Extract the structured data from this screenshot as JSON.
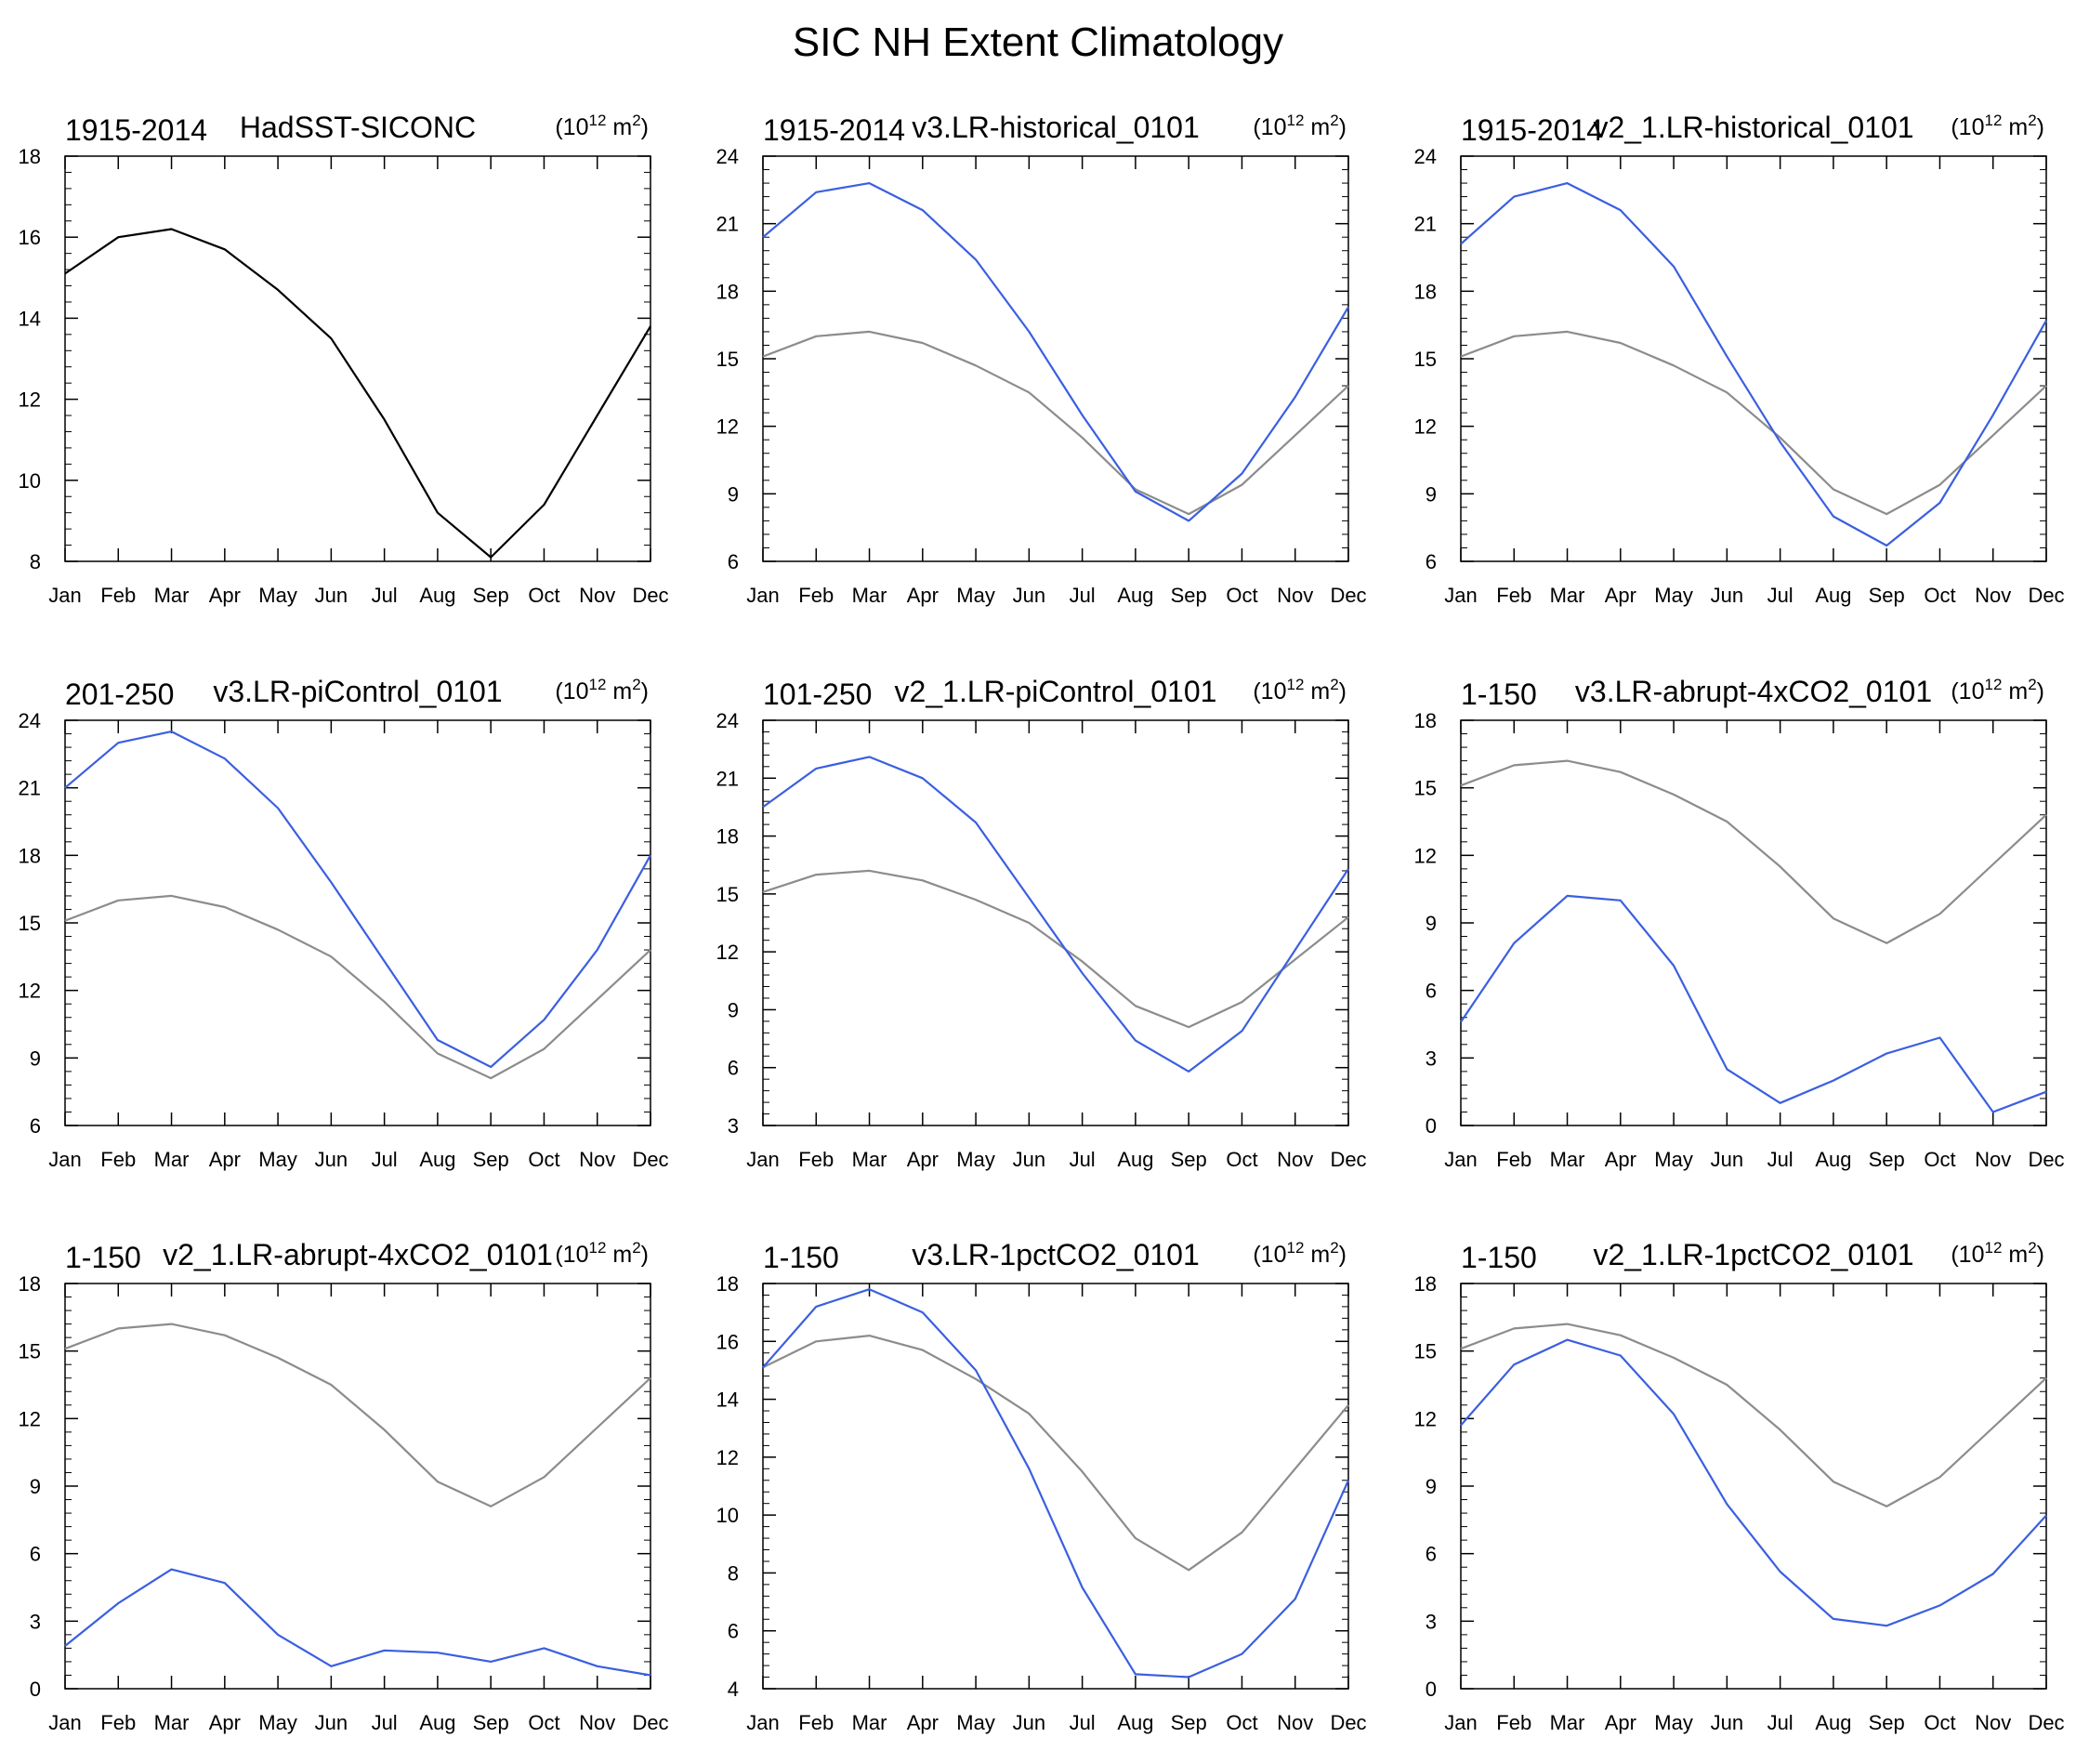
{
  "figure_title": "SIC NH Extent Climatology",
  "units": {
    "base": "(10",
    "exp": "12",
    "mid": " m",
    "exp2": "2",
    "close": ")"
  },
  "colors": {
    "obs": "#000000",
    "ref": "#8c8c8c",
    "model": "#3a5fe0"
  },
  "months": [
    "Jan",
    "Feb",
    "Mar",
    "Apr",
    "May",
    "Jun",
    "Jul",
    "Aug",
    "Sep",
    "Oct",
    "Nov",
    "Dec"
  ],
  "chart_data": [
    {
      "type": "line",
      "period": "1915-2014",
      "title": "HadSST-SICONC",
      "ylim": [
        8,
        18
      ],
      "yticks": [
        8,
        10,
        12,
        14,
        16,
        18
      ],
      "series": [
        {
          "name": "HadSST-SICONC",
          "role": "obs",
          "values": [
            15.1,
            16.0,
            16.2,
            15.7,
            14.7,
            13.5,
            11.5,
            9.2,
            8.1,
            9.4,
            11.6,
            13.8
          ]
        }
      ]
    },
    {
      "type": "line",
      "period": "1915-2014",
      "title": "v3.LR-historical_0101",
      "ylim": [
        6,
        24
      ],
      "yticks": [
        6,
        9,
        12,
        15,
        18,
        21,
        24
      ],
      "series": [
        {
          "name": "HadSST-SICONC",
          "role": "ref",
          "values": [
            15.1,
            16.0,
            16.2,
            15.7,
            14.7,
            13.5,
            11.5,
            9.2,
            8.1,
            9.4,
            11.6,
            13.8
          ]
        },
        {
          "name": "v3.LR-historical_0101",
          "role": "model",
          "values": [
            20.4,
            22.4,
            22.8,
            21.6,
            19.4,
            16.2,
            12.5,
            9.1,
            7.8,
            9.9,
            13.3,
            17.3
          ]
        }
      ]
    },
    {
      "type": "line",
      "period": "1915-2014",
      "title": "v2_1.LR-historical_0101",
      "ylim": [
        6,
        24
      ],
      "yticks": [
        6,
        9,
        12,
        15,
        18,
        21,
        24
      ],
      "series": [
        {
          "name": "HadSST-SICONC",
          "role": "ref",
          "values": [
            15.1,
            16.0,
            16.2,
            15.7,
            14.7,
            13.5,
            11.5,
            9.2,
            8.1,
            9.4,
            11.6,
            13.8
          ]
        },
        {
          "name": "v2_1.LR-historical_0101",
          "role": "model",
          "values": [
            20.1,
            22.2,
            22.8,
            21.6,
            19.1,
            15.1,
            11.3,
            8.0,
            6.7,
            8.6,
            12.5,
            16.7
          ]
        }
      ]
    },
    {
      "type": "line",
      "period": "201-250",
      "title": "v3.LR-piControl_0101",
      "ylim": [
        6,
        24
      ],
      "yticks": [
        6,
        9,
        12,
        15,
        18,
        21,
        24
      ],
      "series": [
        {
          "name": "HadSST-SICONC",
          "role": "ref",
          "values": [
            15.1,
            16.0,
            16.2,
            15.7,
            14.7,
            13.5,
            11.5,
            9.2,
            8.1,
            9.4,
            11.6,
            13.8
          ]
        },
        {
          "name": "v3.LR-piControl_0101",
          "role": "model",
          "values": [
            21.0,
            23.0,
            23.5,
            22.3,
            20.1,
            16.8,
            13.3,
            9.8,
            8.6,
            10.7,
            13.8,
            18.0
          ]
        }
      ]
    },
    {
      "type": "line",
      "period": "101-250",
      "title": "v2_1.LR-piControl_0101",
      "ylim": [
        3,
        24
      ],
      "yticks": [
        3,
        6,
        9,
        12,
        15,
        18,
        21,
        24
      ],
      "series": [
        {
          "name": "HadSST-SICONC",
          "role": "ref",
          "values": [
            15.1,
            16.0,
            16.2,
            15.7,
            14.7,
            13.5,
            11.5,
            9.2,
            8.1,
            9.4,
            11.6,
            13.8
          ]
        },
        {
          "name": "v2_1.LR-piControl_0101",
          "role": "model",
          "values": [
            19.5,
            21.5,
            22.1,
            21.0,
            18.7,
            14.8,
            10.9,
            7.4,
            5.8,
            7.9,
            12.1,
            16.3
          ]
        }
      ]
    },
    {
      "type": "line",
      "period": "1-150",
      "title": "v3.LR-abrupt-4xCO2_0101",
      "ylim": [
        0,
        18
      ],
      "yticks": [
        0,
        3,
        6,
        9,
        12,
        15,
        18
      ],
      "series": [
        {
          "name": "HadSST-SICONC",
          "role": "ref",
          "values": [
            15.1,
            16.0,
            16.2,
            15.7,
            14.7,
            13.5,
            11.5,
            9.2,
            8.1,
            9.4,
            11.6,
            13.8
          ]
        },
        {
          "name": "v3.LR-abrupt-4xCO2_0101",
          "role": "model",
          "values": [
            4.6,
            8.1,
            10.2,
            10.0,
            7.1,
            2.5,
            1.0,
            2.0,
            3.2,
            3.9,
            0.6,
            1.5
          ]
        }
      ]
    },
    {
      "type": "line",
      "period": "1-150",
      "title": "v2_1.LR-abrupt-4xCO2_0101",
      "ylim": [
        0,
        18
      ],
      "yticks": [
        0,
        3,
        6,
        9,
        12,
        15,
        18
      ],
      "series": [
        {
          "name": "HadSST-SICONC",
          "role": "ref",
          "values": [
            15.1,
            16.0,
            16.2,
            15.7,
            14.7,
            13.5,
            11.5,
            9.2,
            8.1,
            9.4,
            11.6,
            13.8
          ]
        },
        {
          "name": "v2_1.LR-abrupt-4xCO2_0101",
          "role": "model",
          "values": [
            1.9,
            3.8,
            5.3,
            4.7,
            2.4,
            1.0,
            1.7,
            1.6,
            1.2,
            1.8,
            1.0,
            0.6
          ]
        }
      ]
    },
    {
      "type": "line",
      "period": "1-150",
      "title": "v3.LR-1pctCO2_0101",
      "ylim": [
        4,
        18
      ],
      "yticks": [
        4,
        6,
        8,
        10,
        12,
        14,
        16,
        18
      ],
      "series": [
        {
          "name": "HadSST-SICONC",
          "role": "ref",
          "values": [
            15.1,
            16.0,
            16.2,
            15.7,
            14.7,
            13.5,
            11.5,
            9.2,
            8.1,
            9.4,
            11.6,
            13.8
          ]
        },
        {
          "name": "v3.LR-1pctCO2_0101",
          "role": "model",
          "values": [
            15.1,
            17.2,
            17.8,
            17.0,
            15.0,
            11.6,
            7.5,
            4.5,
            4.4,
            5.2,
            7.1,
            11.2
          ]
        }
      ]
    },
    {
      "type": "line",
      "period": "1-150",
      "title": "v2_1.LR-1pctCO2_0101",
      "ylim": [
        0,
        18
      ],
      "yticks": [
        0,
        3,
        6,
        9,
        12,
        15,
        18
      ],
      "series": [
        {
          "name": "HadSST-SICONC",
          "role": "ref",
          "values": [
            15.1,
            16.0,
            16.2,
            15.7,
            14.7,
            13.5,
            11.5,
            9.2,
            8.1,
            9.4,
            11.6,
            13.8
          ]
        },
        {
          "name": "v2_1.LR-1pctCO2_0101",
          "role": "model",
          "values": [
            11.7,
            14.4,
            15.5,
            14.8,
            12.2,
            8.2,
            5.2,
            3.1,
            2.8,
            3.7,
            5.1,
            7.7
          ]
        }
      ]
    }
  ]
}
